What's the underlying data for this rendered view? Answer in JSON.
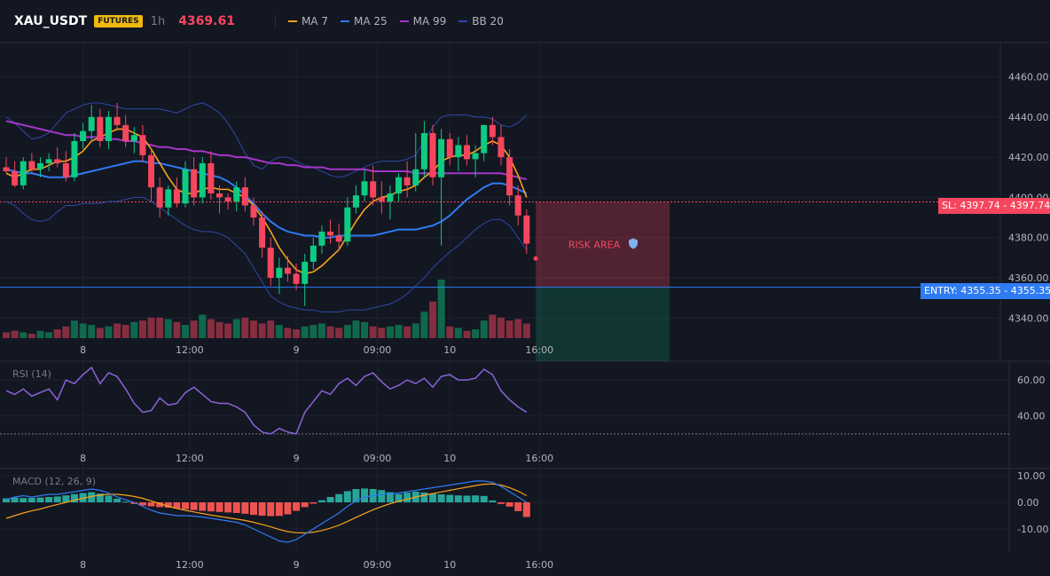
{
  "header": {
    "symbol": "XAU_USDT",
    "badge": "FUTURES",
    "timeframe": "1h",
    "last_price": "4369.61"
  },
  "legend": [
    {
      "label": "MA 7",
      "color": "#f7a21b"
    },
    {
      "label": "MA 25",
      "color": "#2f7bf4"
    },
    {
      "label": "MA 99",
      "color": "#a436c9"
    },
    {
      "label": "BB 20",
      "color": "#2b4aa8"
    }
  ],
  "panes": {
    "rsi_label": "RSI (14)",
    "macd_label": "MACD (12, 26, 9)"
  },
  "trade": {
    "sl_label": "SL: 4397.74",
    "sl_value": "4397.74",
    "sl_price": 4397.74,
    "entry_label": "ENTRY: 4355.35",
    "entry_value": "4355.35",
    "entry_price": 4355.35,
    "zone_label": "RISK AREA",
    "sl_color": "#f6465d",
    "entry_color": "#2f7bf4"
  },
  "chart_data": {
    "type": "candlestick",
    "x_ticks": [
      "8",
      "12:00",
      "9",
      "09:00",
      "10",
      "16:00"
    ],
    "price_ticks": [
      "4460.00",
      "4440.00",
      "4420.00",
      "4400.00",
      "4380.00",
      "4360.00",
      "4340.00"
    ],
    "price_range": [
      4330,
      4477
    ],
    "candles": [
      [
        4415,
        4420,
        4412,
        4413
      ],
      [
        4413,
        4418,
        4405,
        4406
      ],
      [
        4406,
        4420,
        4404,
        4418
      ],
      [
        4418,
        4422,
        4412,
        4414
      ],
      [
        4414,
        4420,
        4410,
        4417
      ],
      [
        4417,
        4422,
        4413,
        4419
      ],
      [
        4419,
        4425,
        4415,
        4417
      ],
      [
        4417,
        4423,
        4408,
        4410
      ],
      [
        4410,
        4432,
        4408,
        4428
      ],
      [
        4428,
        4437,
        4424,
        4433
      ],
      [
        4433,
        4446,
        4428,
        4440
      ],
      [
        4440,
        4444,
        4425,
        4428
      ],
      [
        4428,
        4443,
        4424,
        4440
      ],
      [
        4440,
        4447,
        4433,
        4436
      ],
      [
        4436,
        4441,
        4425,
        4428
      ],
      [
        4428,
        4435,
        4422,
        4431
      ],
      [
        4431,
        4436,
        4418,
        4421
      ],
      [
        4421,
        4424,
        4398,
        4405
      ],
      [
        4405,
        4410,
        4390,
        4395
      ],
      [
        4395,
        4406,
        4391,
        4404
      ],
      [
        4404,
        4410,
        4395,
        4397
      ],
      [
        4397,
        4418,
        4395,
        4414
      ],
      [
        4414,
        4420,
        4396,
        4400
      ],
      [
        4400,
        4420,
        4397,
        4417
      ],
      [
        4417,
        4423,
        4399,
        4402
      ],
      [
        4402,
        4406,
        4392,
        4400
      ],
      [
        4400,
        4402,
        4394,
        4398
      ],
      [
        4398,
        4408,
        4393,
        4405
      ],
      [
        4405,
        4410,
        4393,
        4396
      ],
      [
        4396,
        4400,
        4386,
        4390
      ],
      [
        4390,
        4393,
        4370,
        4375
      ],
      [
        4375,
        4380,
        4356,
        4360
      ],
      [
        4360,
        4370,
        4352,
        4365
      ],
      [
        4365,
        4371,
        4358,
        4362
      ],
      [
        4362,
        4367,
        4354,
        4357
      ],
      [
        4357,
        4372,
        4346,
        4368
      ],
      [
        4368,
        4380,
        4364,
        4376
      ],
      [
        4376,
        4386,
        4372,
        4383
      ],
      [
        4383,
        4389,
        4377,
        4381
      ],
      [
        4381,
        4387,
        4374,
        4378
      ],
      [
        4378,
        4400,
        4376,
        4395
      ],
      [
        4395,
        4406,
        4392,
        4401
      ],
      [
        4401,
        4414,
        4398,
        4408
      ],
      [
        4408,
        4416,
        4396,
        4400
      ],
      [
        4400,
        4408,
        4392,
        4398
      ],
      [
        4398,
        4406,
        4389,
        4402
      ],
      [
        4402,
        4412,
        4398,
        4410
      ],
      [
        4410,
        4418,
        4400,
        4406
      ],
      [
        4406,
        4432,
        4403,
        4414
      ],
      [
        4414,
        4438,
        4410,
        4432
      ],
      [
        4432,
        4436,
        4406,
        4410
      ],
      [
        4410,
        4434,
        4376,
        4429
      ],
      [
        4429,
        4432,
        4416,
        4420
      ],
      [
        4420,
        4430,
        4413,
        4426
      ],
      [
        4426,
        4431,
        4416,
        4419
      ],
      [
        4419,
        4426,
        4410,
        4422
      ],
      [
        4422,
        4436,
        4418,
        4436
      ],
      [
        4436,
        4440,
        4426,
        4430
      ],
      [
        4430,
        4436,
        4416,
        4420
      ],
      [
        4420,
        4424,
        4396,
        4401
      ],
      [
        4401,
        4406,
        4386,
        4391
      ],
      [
        4391,
        4394,
        4372,
        4377
      ]
    ],
    "volume": [
      4,
      5,
      4,
      3,
      5,
      4,
      6,
      8,
      12,
      10,
      9,
      7,
      8,
      10,
      9,
      11,
      12,
      14,
      14,
      13,
      11,
      9,
      12,
      16,
      13,
      11,
      10,
      13,
      14,
      12,
      10,
      12,
      9,
      7,
      6,
      8,
      9,
      10,
      8,
      7,
      9,
      12,
      11,
      8,
      7,
      8,
      9,
      8,
      10,
      18,
      25,
      40,
      8,
      7,
      5,
      6,
      12,
      16,
      14,
      12,
      13,
      10
    ],
    "ma7": [
      4412,
      4410,
      4412,
      4414,
      4414,
      4416,
      4418,
      4418,
      4420,
      4423,
      4428,
      4430,
      4432,
      4434,
      4434,
      4432,
      4430,
      4424,
      4417,
      4410,
      4404,
      4402,
      4402,
      4404,
      4405,
      4404,
      4404,
      4402,
      4400,
      4396,
      4390,
      4383,
      4375,
      4369,
      4364,
      4362,
      4363,
      4366,
      4370,
      4374,
      4381,
      4388,
      4394,
      4398,
      4400,
      4401,
      4403,
      4404,
      4406,
      4410,
      4413,
      4418,
      4420,
      4421,
      4421,
      4423,
      4426,
      4428,
      4426,
      4420,
      4411,
      4400
    ],
    "ma25": [
      4414,
      4413,
      4412,
      4412,
      4411,
      4410,
      4410,
      4410,
      4411,
      4412,
      4413,
      4414,
      4415,
      4416,
      4417,
      4418,
      4418,
      4417,
      4417,
      4416,
      4415,
      4414,
      4413,
      4412,
      4411,
      4410,
      4408,
      4405,
      4401,
      4397,
      4392,
      4388,
      4385,
      4383,
      4382,
      4381,
      4381,
      4380,
      4380,
      4381,
      4381,
      4381,
      4381,
      4381,
      4382,
      4383,
      4384,
      4384,
      4384,
      4385,
      4386,
      4388,
      4391,
      4395,
      4399,
      4402,
      4405,
      4407,
      4407,
      4406,
      4404,
      4402
    ],
    "ma99": [
      4438,
      4437,
      4436,
      4435,
      4434,
      4433,
      4432,
      4431,
      4431,
      4430,
      4430,
      4430,
      4429,
      4429,
      4428,
      4428,
      4427,
      4426,
      4425,
      4425,
      4424,
      4424,
      4423,
      4423,
      4422,
      4421,
      4421,
      4420,
      4420,
      4419,
      4418,
      4417,
      4417,
      4416,
      4416,
      4415,
      4415,
      4415,
      4414,
      4414,
      4414,
      4414,
      4414,
      4413,
      4413,
      4413,
      4413,
      4413,
      4412,
      4412,
      4412,
      4412,
      4412,
      4412,
      4412,
      4412,
      4412,
      4412,
      4412,
      4411,
      4410,
      4409
    ],
    "bb_upper": [
      4440,
      4437,
      4433,
      4429,
      4430,
      4432,
      4437,
      4442,
      4444,
      4446,
      4447,
      4447,
      4446,
      4445,
      4444,
      4444,
      4444,
      4444,
      4444,
      4443,
      4442,
      4444,
      4446,
      4447,
      4445,
      4442,
      4437,
      4430,
      4422,
      4416,
      4414,
      4418,
      4420,
      4420,
      4418,
      4416,
      4415,
      4413,
      4411,
      4410,
      4411,
      4413,
      4415,
      4417,
      4418,
      4418,
      4418,
      4419,
      4421,
      4428,
      4435,
      4440,
      4441,
      4441,
      4441,
      4440,
      4440,
      4439,
      4436,
      4435,
      4437,
      4441
    ],
    "bb_lower": [
      4398,
      4396,
      4392,
      4389,
      4388,
      4389,
      4393,
      4396,
      4396,
      4397,
      4397,
      4397,
      4398,
      4398,
      4399,
      4400,
      4400,
      4398,
      4395,
      4392,
      4389,
      4386,
      4384,
      4383,
      4383,
      4382,
      4380,
      4376,
      4372,
      4365,
      4358,
      4351,
      4348,
      4346,
      4345,
      4344,
      4344,
      4343,
      4343,
      4343,
      4344,
      4344,
      4344,
      4345,
      4346,
      4347,
      4349,
      4352,
      4356,
      4360,
      4365,
      4369,
      4373,
      4376,
      4380,
      4384,
      4387,
      4389,
      4389,
      4386,
      4380,
      4374
    ],
    "rsi": {
      "ticks": [
        "60.00",
        "40.00"
      ],
      "range": [
        22,
        68
      ],
      "values": [
        54,
        52,
        55,
        51,
        53,
        55,
        49,
        60,
        58,
        63,
        67,
        58,
        64,
        62,
        55,
        47,
        42,
        43,
        50,
        46,
        47,
        53,
        56,
        52,
        48,
        47,
        47,
        45,
        42,
        35,
        31,
        30,
        33,
        31,
        30,
        42,
        48,
        54,
        52,
        58,
        61,
        57,
        62,
        64,
        59,
        55,
        57,
        60,
        58,
        61,
        56,
        62,
        63,
        60,
        60,
        61,
        66,
        63,
        54,
        49,
        45,
        42
      ],
      "threshold": 30
    },
    "macd": {
      "ticks": [
        "10.00",
        "0.00",
        "-10.00"
      ],
      "range": [
        -18,
        12
      ],
      "macd_line": [
        1,
        2,
        2.5,
        2,
        2.5,
        3,
        3,
        3.5,
        4,
        4.5,
        5,
        4.5,
        3.5,
        2,
        1,
        0,
        -1.5,
        -3,
        -4,
        -4.5,
        -5,
        -5,
        -5.2,
        -5.5,
        -6,
        -6.5,
        -7,
        -7.5,
        -8.5,
        -10,
        -11.5,
        -13,
        -14.5,
        -15,
        -14,
        -12,
        -10,
        -8,
        -6,
        -4,
        -1.5,
        0.5,
        2,
        2.5,
        3,
        3.2,
        3.5,
        4,
        4.5,
        5,
        5.5,
        6,
        6.5,
        7,
        7.5,
        8,
        8,
        7.5,
        6,
        4,
        2,
        0
      ],
      "signal_line": [
        -6,
        -5,
        -4,
        -3.2,
        -2.5,
        -1.6,
        -0.8,
        0,
        0.8,
        1.5,
        2.2,
        2.7,
        3,
        3,
        2.7,
        2.2,
        1.5,
        0.5,
        -0.5,
        -1.5,
        -2.3,
        -3,
        -3.6,
        -4.2,
        -4.8,
        -5.3,
        -5.8,
        -6.3,
        -6.8,
        -7.5,
        -8.3,
        -9.2,
        -10.2,
        -11,
        -11.4,
        -11.5,
        -11.2,
        -10.6,
        -9.7,
        -8.6,
        -7.2,
        -5.7,
        -4.2,
        -2.8,
        -1.6,
        -0.5,
        0.4,
        1.2,
        2,
        2.7,
        3.3,
        3.9,
        4.5,
        5.1,
        5.7,
        6.3,
        6.8,
        6.9,
        6.5,
        5.5,
        4.2,
        2.5
      ],
      "histogram": [
        1.5,
        1.8,
        1.6,
        1.7,
        1.8,
        2,
        2.2,
        2.6,
        3.1,
        3.5,
        3.8,
        3.3,
        2.5,
        1.4,
        0.3,
        -0.6,
        -1.2,
        -1.5,
        -1.8,
        -2,
        -2.3,
        -2.6,
        -2.9,
        -3.2,
        -3.4,
        -3.6,
        -3.8,
        -4,
        -4.3,
        -4.7,
        -5,
        -5.2,
        -5.1,
        -4.5,
        -3.2,
        -1.8,
        -0.5,
        0.8,
        2,
        3.1,
        4.2,
        5,
        5.2,
        5,
        4.6,
        3.8,
        3.1,
        3.6,
        4,
        3.7,
        3.2,
        3,
        2.8,
        2.6,
        2.5,
        2.6,
        2.4,
        0.7,
        -0.6,
        -1.6,
        -3.3,
        -5.5
      ]
    }
  }
}
